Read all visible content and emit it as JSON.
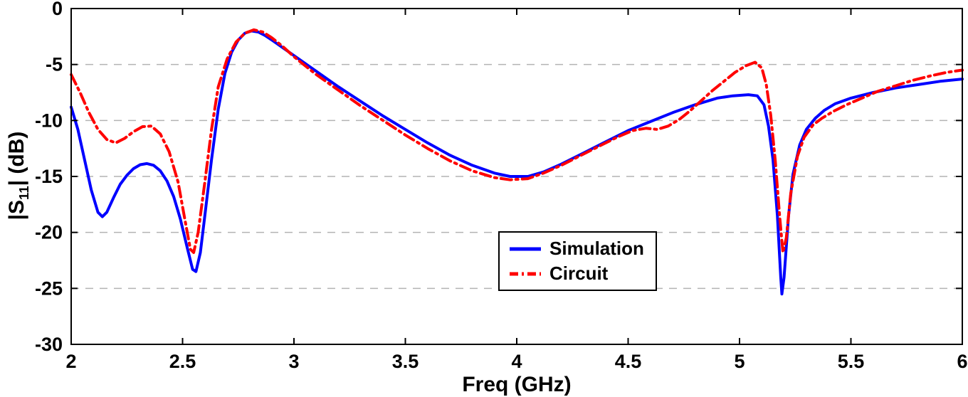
{
  "figure": {
    "background": "#ffffff"
  },
  "chart_data": {
    "type": "line",
    "title": "",
    "xlabel": "Freq (GHz)",
    "ylabel": "|S11| (dB)",
    "ylabel_parts": {
      "prefix": "|S",
      "sub": "11",
      "suffix": "| (dB)"
    },
    "xlim": [
      2,
      6
    ],
    "ylim": [
      -30,
      0
    ],
    "xticks": [
      2,
      2.5,
      3,
      3.5,
      4,
      4.5,
      5,
      5.5,
      6
    ],
    "xtick_labels": [
      "2",
      "2.5",
      "3",
      "3.5",
      "4",
      "4.5",
      "5",
      "5.5",
      "6"
    ],
    "yticks": [
      0,
      -5,
      -10,
      -15,
      -20,
      -25,
      -30
    ],
    "ytick_labels": [
      "0",
      "-5",
      "-10",
      "-15",
      "-20",
      "-25",
      "-30"
    ],
    "grid": "horizontal-dashed",
    "grid_color": "#b3b3b3",
    "axis_color": "#000000",
    "legend": {
      "position": "inside-lower-right-of-center",
      "border": true
    },
    "series": [
      {
        "name": "Simulation",
        "color": "#0000ff",
        "style": "solid",
        "width": 4,
        "points": [
          [
            2.0,
            -8.8
          ],
          [
            2.03,
            -10.8
          ],
          [
            2.06,
            -13.5
          ],
          [
            2.09,
            -16.2
          ],
          [
            2.12,
            -18.2
          ],
          [
            2.14,
            -18.6
          ],
          [
            2.16,
            -18.2
          ],
          [
            2.19,
            -16.9
          ],
          [
            2.22,
            -15.7
          ],
          [
            2.25,
            -14.9
          ],
          [
            2.28,
            -14.3
          ],
          [
            2.31,
            -13.95
          ],
          [
            2.34,
            -13.85
          ],
          [
            2.37,
            -14.0
          ],
          [
            2.4,
            -14.5
          ],
          [
            2.43,
            -15.4
          ],
          [
            2.46,
            -16.8
          ],
          [
            2.49,
            -18.8
          ],
          [
            2.52,
            -21.3
          ],
          [
            2.545,
            -23.3
          ],
          [
            2.56,
            -23.5
          ],
          [
            2.58,
            -21.8
          ],
          [
            2.6,
            -18.5
          ],
          [
            2.63,
            -13.5
          ],
          [
            2.66,
            -9.0
          ],
          [
            2.69,
            -5.8
          ],
          [
            2.72,
            -3.9
          ],
          [
            2.75,
            -2.8
          ],
          [
            2.78,
            -2.2
          ],
          [
            2.81,
            -2.0
          ],
          [
            2.84,
            -2.1
          ],
          [
            2.87,
            -2.4
          ],
          [
            2.9,
            -2.8
          ],
          [
            2.95,
            -3.5
          ],
          [
            3.0,
            -4.2
          ],
          [
            3.1,
            -5.6
          ],
          [
            3.2,
            -7.0
          ],
          [
            3.3,
            -8.3
          ],
          [
            3.4,
            -9.6
          ],
          [
            3.5,
            -10.8
          ],
          [
            3.6,
            -12.0
          ],
          [
            3.7,
            -13.1
          ],
          [
            3.8,
            -14.0
          ],
          [
            3.9,
            -14.7
          ],
          [
            3.97,
            -15.0
          ],
          [
            4.05,
            -15.0
          ],
          [
            4.12,
            -14.6
          ],
          [
            4.2,
            -13.9
          ],
          [
            4.3,
            -12.9
          ],
          [
            4.4,
            -11.9
          ],
          [
            4.5,
            -10.9
          ],
          [
            4.6,
            -10.1
          ],
          [
            4.7,
            -9.3
          ],
          [
            4.8,
            -8.6
          ],
          [
            4.9,
            -8.0
          ],
          [
            4.97,
            -7.8
          ],
          [
            5.04,
            -7.7
          ],
          [
            5.08,
            -7.8
          ],
          [
            5.11,
            -8.6
          ],
          [
            5.13,
            -10.5
          ],
          [
            5.15,
            -13.5
          ],
          [
            5.17,
            -18.5
          ],
          [
            5.185,
            -24.0
          ],
          [
            5.19,
            -25.5
          ],
          [
            5.2,
            -24.0
          ],
          [
            5.22,
            -18.5
          ],
          [
            5.24,
            -14.8
          ],
          [
            5.27,
            -12.2
          ],
          [
            5.3,
            -10.8
          ],
          [
            5.34,
            -9.8
          ],
          [
            5.38,
            -9.1
          ],
          [
            5.43,
            -8.5
          ],
          [
            5.5,
            -8.0
          ],
          [
            5.6,
            -7.5
          ],
          [
            5.7,
            -7.1
          ],
          [
            5.8,
            -6.8
          ],
          [
            5.9,
            -6.5
          ],
          [
            6.0,
            -6.3
          ]
        ]
      },
      {
        "name": "Circuit",
        "color": "#ff0000",
        "style": "dash-dot",
        "width": 4,
        "points": [
          [
            2.0,
            -5.9
          ],
          [
            2.04,
            -7.5
          ],
          [
            2.08,
            -9.3
          ],
          [
            2.12,
            -10.8
          ],
          [
            2.16,
            -11.7
          ],
          [
            2.2,
            -12.0
          ],
          [
            2.24,
            -11.6
          ],
          [
            2.28,
            -11.0
          ],
          [
            2.32,
            -10.55
          ],
          [
            2.36,
            -10.5
          ],
          [
            2.4,
            -11.2
          ],
          [
            2.44,
            -12.8
          ],
          [
            2.48,
            -15.5
          ],
          [
            2.51,
            -18.8
          ],
          [
            2.535,
            -21.5
          ],
          [
            2.55,
            -21.8
          ],
          [
            2.57,
            -20.0
          ],
          [
            2.6,
            -15.5
          ],
          [
            2.63,
            -10.8
          ],
          [
            2.66,
            -7.0
          ],
          [
            2.7,
            -4.5
          ],
          [
            2.74,
            -3.0
          ],
          [
            2.78,
            -2.2
          ],
          [
            2.82,
            -1.9
          ],
          [
            2.86,
            -2.1
          ],
          [
            2.9,
            -2.6
          ],
          [
            2.95,
            -3.4
          ],
          [
            3.0,
            -4.3
          ],
          [
            3.1,
            -5.9
          ],
          [
            3.2,
            -7.3
          ],
          [
            3.3,
            -8.7
          ],
          [
            3.4,
            -10.0
          ],
          [
            3.5,
            -11.3
          ],
          [
            3.6,
            -12.5
          ],
          [
            3.7,
            -13.6
          ],
          [
            3.8,
            -14.5
          ],
          [
            3.9,
            -15.1
          ],
          [
            3.97,
            -15.3
          ],
          [
            4.05,
            -15.2
          ],
          [
            4.12,
            -14.7
          ],
          [
            4.2,
            -14.0
          ],
          [
            4.3,
            -13.0
          ],
          [
            4.38,
            -12.2
          ],
          [
            4.45,
            -11.5
          ],
          [
            4.52,
            -10.9
          ],
          [
            4.58,
            -10.7
          ],
          [
            4.63,
            -10.8
          ],
          [
            4.68,
            -10.5
          ],
          [
            4.73,
            -9.9
          ],
          [
            4.78,
            -9.1
          ],
          [
            4.83,
            -8.2
          ],
          [
            4.88,
            -7.3
          ],
          [
            4.93,
            -6.5
          ],
          [
            4.98,
            -5.7
          ],
          [
            5.03,
            -5.1
          ],
          [
            5.07,
            -4.8
          ],
          [
            5.1,
            -5.3
          ],
          [
            5.12,
            -6.8
          ],
          [
            5.14,
            -9.5
          ],
          [
            5.16,
            -13.5
          ],
          [
            5.18,
            -18.5
          ],
          [
            5.195,
            -21.8
          ],
          [
            5.21,
            -20.5
          ],
          [
            5.23,
            -16.5
          ],
          [
            5.26,
            -13.2
          ],
          [
            5.29,
            -11.5
          ],
          [
            5.33,
            -10.4
          ],
          [
            5.37,
            -9.8
          ],
          [
            5.42,
            -9.2
          ],
          [
            5.48,
            -8.6
          ],
          [
            5.55,
            -8.0
          ],
          [
            5.62,
            -7.4
          ],
          [
            5.7,
            -6.9
          ],
          [
            5.78,
            -6.4
          ],
          [
            5.86,
            -6.0
          ],
          [
            5.93,
            -5.7
          ],
          [
            6.0,
            -5.5
          ]
        ]
      }
    ]
  }
}
